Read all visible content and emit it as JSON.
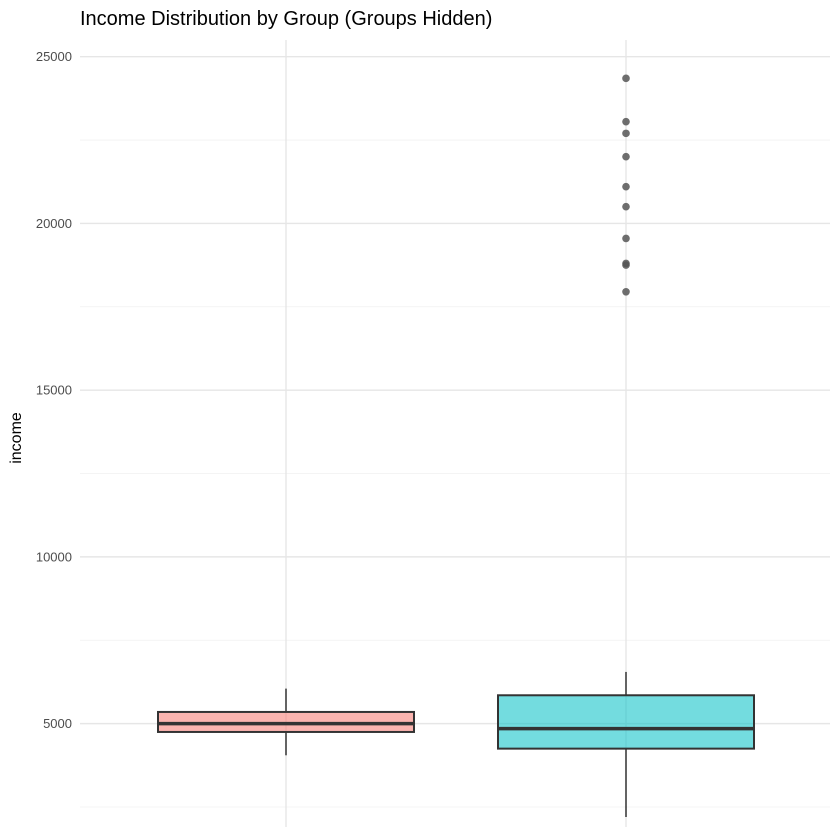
{
  "chart_data": {
    "type": "boxplot",
    "title": "Income Distribution by Group (Groups Hidden)",
    "ylabel": "income",
    "xlabel": "",
    "ylim": [
      1900,
      25500
    ],
    "yticks": [
      5000,
      10000,
      15000,
      20000,
      25000
    ],
    "yticks_minor": [
      2500,
      7500,
      12500,
      17500,
      22500
    ],
    "grid": true,
    "legend": "none",
    "series": [
      {
        "color": "#F8766D",
        "whisker_low": 4050,
        "q1": 4750,
        "median": 5000,
        "q3": 5350,
        "whisker_high": 6050,
        "outliers": []
      },
      {
        "color": "#00BFC4",
        "whisker_low": 2200,
        "q1": 4250,
        "median": 4850,
        "q3": 5850,
        "whisker_high": 6550,
        "outliers": [
          24350,
          23050,
          22700,
          22000,
          21100,
          20500,
          19550,
          18800,
          18750,
          17950
        ]
      }
    ]
  }
}
